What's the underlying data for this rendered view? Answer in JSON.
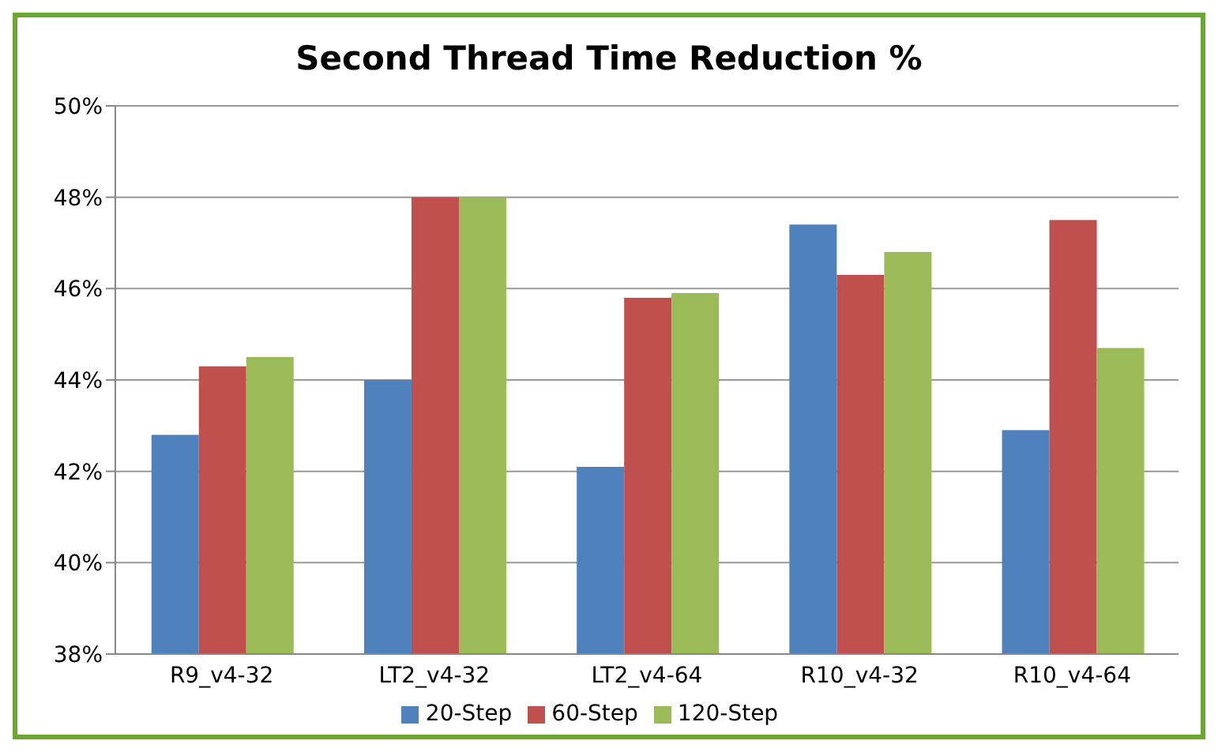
{
  "chart_data": {
    "type": "bar",
    "title": "Second Thread Time Reduction %",
    "categories": [
      "R9_v4-32",
      "LT2_v4-32",
      "LT2_v4-64",
      "R10_v4-32",
      "R10_v4-64"
    ],
    "series": [
      {
        "name": "20-Step",
        "color": "#4f81bd",
        "values": [
          42.8,
          44.0,
          42.1,
          47.4,
          42.9
        ]
      },
      {
        "name": "60-Step",
        "color": "#c0504d",
        "values": [
          44.3,
          48.0,
          45.8,
          46.3,
          47.5
        ]
      },
      {
        "name": "120-Step",
        "color": "#9bbb59",
        "values": [
          44.5,
          48.0,
          45.9,
          46.8,
          44.7
        ]
      }
    ],
    "ylim": [
      38,
      50
    ],
    "yticks": [
      {
        "value": 38,
        "label": "38%"
      },
      {
        "value": 40,
        "label": "40%"
      },
      {
        "value": 42,
        "label": "42%"
      },
      {
        "value": 44,
        "label": "44%"
      },
      {
        "value": 46,
        "label": "46%"
      },
      {
        "value": 48,
        "label": "48%"
      },
      {
        "value": 50,
        "label": "50%"
      }
    ],
    "grid": "y",
    "legend": "bottom"
  }
}
